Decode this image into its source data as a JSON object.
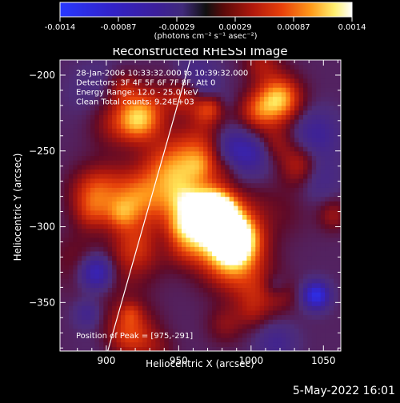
{
  "colorbar": {
    "ticks": [
      "-0.0014",
      "-0.00087",
      "-0.00029",
      "0.00029",
      "0.00087",
      "0.0014"
    ],
    "units_label": "(photons cm⁻² s⁻¹ asec⁻²)"
  },
  "chart_data": {
    "type": "heatmap",
    "title": "Reconstructed RHESSI Image",
    "xlabel": "Heliocentric X (arcsec)",
    "ylabel": "Heliocentric Y (arcsec)",
    "xlim": [
      868,
      1062
    ],
    "ylim": [
      -382,
      -190
    ],
    "xticks": [
      900,
      950,
      1000,
      1050
    ],
    "yticks": [
      -200,
      -250,
      -300,
      -350
    ],
    "colormap": "rainbow-to-hot (blue negative, purple near zero, red/orange/yellow/white positive)",
    "color_range": [
      -0.0014,
      0.0014
    ],
    "peak": [
      975,
      -291
    ],
    "limb_line": [
      [
        901,
        -382
      ],
      [
        958,
        -190
      ]
    ],
    "annotations": [
      "28-Jan-2006 10:33:32.000 to 10:39:32.000",
      "Detectors: 3F 4F 5F 6F 7F 8F, Att 0",
      "Energy Range: 12.0 - 25.0 keV",
      "Clean     Total counts: 9.24E+03",
      "Position of Peak = [975,-291]"
    ]
  },
  "footer": {
    "date": "5-May-2022 16:01"
  }
}
